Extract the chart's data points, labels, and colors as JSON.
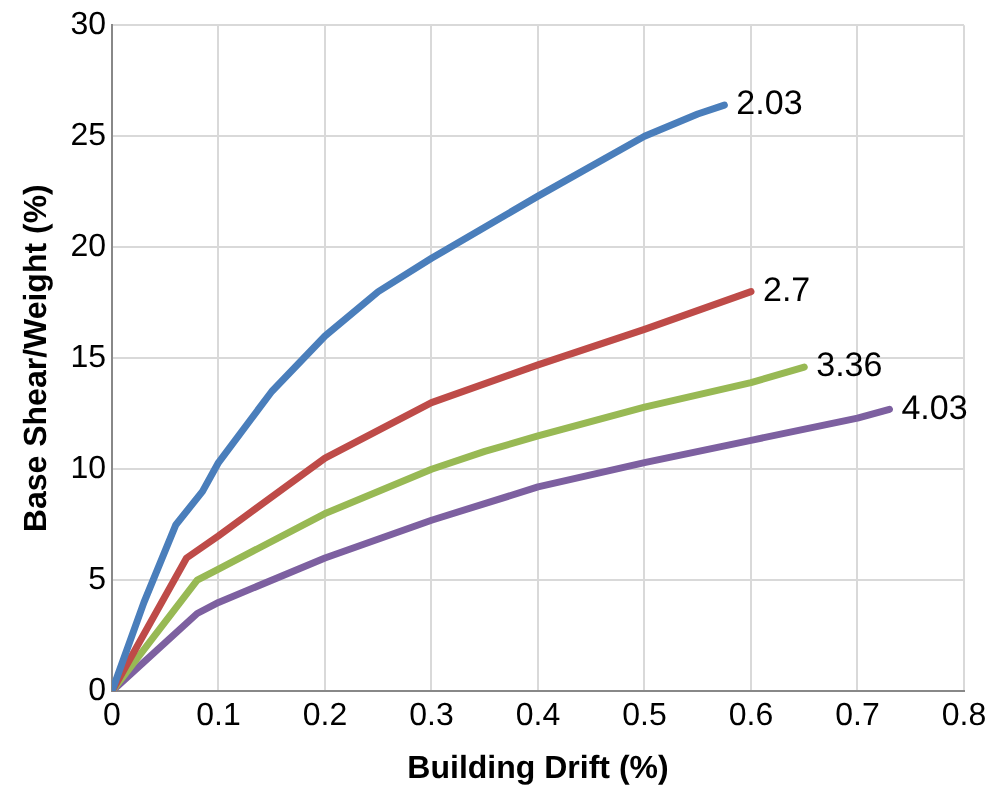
{
  "chart_data": {
    "type": "line",
    "xlabel": "Building Drift (%)",
    "ylabel": "Base Shear/Weight (%)",
    "xlim": [
      0,
      0.8
    ],
    "xticks": [
      0,
      0.1,
      0.2,
      0.3,
      0.4,
      0.5,
      0.6,
      0.7,
      0.8
    ],
    "ylim": [
      0,
      30
    ],
    "yticks": [
      0,
      5,
      10,
      15,
      20,
      25,
      30
    ],
    "grid": true,
    "legend": false,
    "marker": "none",
    "series": [
      {
        "color": "#4a7ebb",
        "x": [
          0,
          0.03,
          0.06,
          0.085,
          0.1,
          0.15,
          0.2,
          0.25,
          0.3,
          0.4,
          0.5,
          0.55,
          0.575
        ],
        "values": [
          0,
          4,
          7.5,
          9,
          10.3,
          13.5,
          16,
          18,
          19.5,
          22.3,
          25,
          26,
          26.4
        ]
      },
      {
        "color": "#be4b48",
        "x": [
          0,
          0.07,
          0.1,
          0.2,
          0.3,
          0.4,
          0.5,
          0.6
        ],
        "values": [
          0,
          6,
          7,
          10.5,
          13,
          14.7,
          16.3,
          18
        ]
      },
      {
        "color": "#98b954",
        "x": [
          0,
          0.08,
          0.1,
          0.2,
          0.3,
          0.35,
          0.4,
          0.5,
          0.6,
          0.65
        ],
        "values": [
          0,
          5,
          5.5,
          8,
          10,
          10.8,
          11.5,
          12.8,
          13.9,
          14.6
        ]
      },
      {
        "color": "#7d60a0",
        "x": [
          0,
          0.08,
          0.1,
          0.2,
          0.3,
          0.4,
          0.5,
          0.6,
          0.7,
          0.73
        ],
        "values": [
          0,
          3.5,
          4,
          6,
          7.7,
          9.2,
          10.3,
          11.3,
          12.3,
          12.7
        ]
      }
    ],
    "annotations": [
      {
        "text": "2.03",
        "x": 0.575,
        "y": 26.4
      },
      {
        "text": "2.7",
        "x": 0.6,
        "y": 18
      },
      {
        "text": "3.36",
        "x": 0.65,
        "y": 14.6
      },
      {
        "text": "4.03",
        "x": 0.73,
        "y": 12.7
      }
    ]
  }
}
